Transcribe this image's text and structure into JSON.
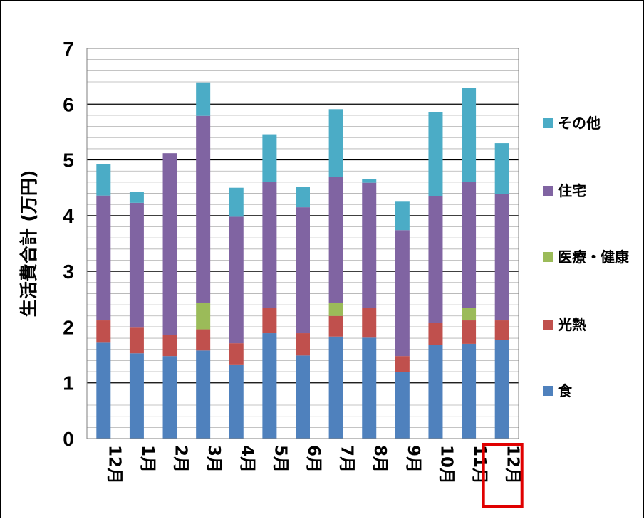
{
  "chart_data": {
    "type": "bar",
    "stacked": true,
    "ylabel": "生活費合計 (万円)",
    "ylim": [
      0,
      7
    ],
    "yticks": [
      0,
      1,
      2,
      3,
      4,
      5,
      6,
      7
    ],
    "ytick_labels": [
      "0",
      "1",
      "2",
      "3",
      "4",
      "5",
      "6",
      "7"
    ],
    "minor_gridline_step": 0.2,
    "categories": [
      "12月",
      "1月",
      "2月",
      "3月",
      "4月",
      "5月",
      "6月",
      "7月",
      "8月",
      "9月",
      "10月",
      "11月",
      "12月"
    ],
    "highlighted_category_index": 12,
    "highlight_color": "#e00000",
    "series": [
      {
        "name": "食",
        "color": "#4f81bd",
        "values": [
          1.72,
          1.53,
          1.48,
          1.58,
          1.33,
          1.89,
          1.49,
          1.83,
          1.81,
          1.2,
          1.68,
          1.7,
          1.77
        ]
      },
      {
        "name": "光熱",
        "color": "#c0504d",
        "values": [
          0.4,
          0.46,
          0.38,
          0.38,
          0.38,
          0.46,
          0.4,
          0.37,
          0.53,
          0.28,
          0.4,
          0.42,
          0.35
        ]
      },
      {
        "name": "医療・健康",
        "color": "#9bbb59",
        "values": [
          0,
          0,
          0,
          0.48,
          0,
          0,
          0,
          0.24,
          0,
          0,
          0,
          0.23,
          0
        ]
      },
      {
        "name": "住宅",
        "color": "#8064a2",
        "values": [
          2.24,
          2.24,
          3.26,
          3.35,
          2.27,
          2.25,
          2.26,
          2.26,
          2.25,
          2.26,
          2.27,
          2.26,
          2.27
        ]
      },
      {
        "name": "その他",
        "color": "#4bacc6",
        "values": [
          0.57,
          0.2,
          0,
          0.6,
          0.52,
          0.86,
          0.36,
          1.21,
          0.07,
          0.51,
          1.51,
          1.68,
          0.91
        ]
      }
    ],
    "legend": {
      "placement": "right",
      "order": [
        "その他",
        "住宅",
        "医療・健康",
        "光熱",
        "食"
      ]
    },
    "grid": {
      "major": true,
      "minor": true
    }
  }
}
